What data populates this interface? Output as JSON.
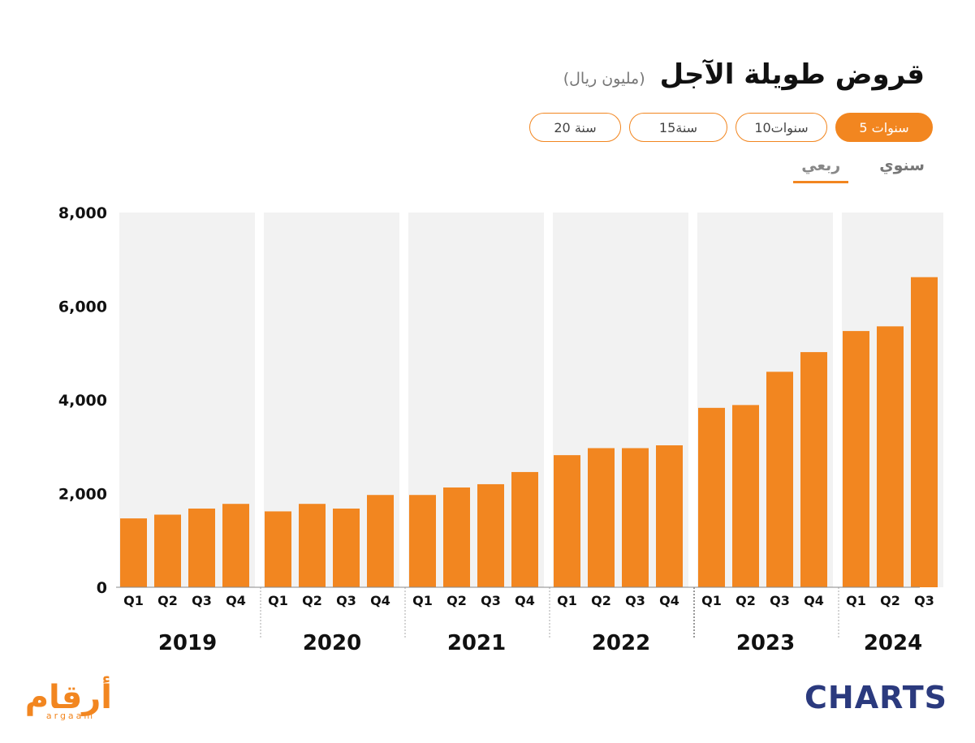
{
  "header": {
    "title": "قروض طويلة الآجل",
    "subtitle": "(مليون ريال)"
  },
  "range_buttons": [
    {
      "label": "5 سنوات",
      "active": true
    },
    {
      "label": "10سنوات",
      "active": false
    },
    {
      "label": "15سنة",
      "active": false
    },
    {
      "label": "20 سنة",
      "active": false
    }
  ],
  "period_tabs": [
    {
      "label": "سنوي",
      "active": false
    },
    {
      "label": "ربعي",
      "active": true
    }
  ],
  "logos": {
    "left_text": "أرقام",
    "left_sub": "argaam",
    "right_text": "CHARTS"
  },
  "colors": {
    "accent": "#f28620",
    "bar": "#f28620",
    "band": "#f2f2f2",
    "brand_dark": "#2b3a7e"
  },
  "chart_data": {
    "type": "bar",
    "ylim": [
      0,
      8000
    ],
    "yticks": [
      0,
      2000,
      4000,
      6000,
      8000
    ],
    "ytick_labels": [
      "0",
      "2,000",
      "4,000",
      "6,000",
      "8,000"
    ],
    "grid": false,
    "groups": [
      {
        "year": "2019",
        "quarters": [
          "Q1",
          "Q2",
          "Q3",
          "Q4"
        ],
        "values": [
          1470,
          1550,
          1680,
          1780
        ]
      },
      {
        "year": "2020",
        "quarters": [
          "Q1",
          "Q2",
          "Q3",
          "Q4"
        ],
        "values": [
          1620,
          1780,
          1680,
          1970
        ]
      },
      {
        "year": "2021",
        "quarters": [
          "Q1",
          "Q2",
          "Q3",
          "Q4"
        ],
        "values": [
          1970,
          2130,
          2200,
          2460
        ]
      },
      {
        "year": "2022",
        "quarters": [
          "Q1",
          "Q2",
          "Q3",
          "Q4"
        ],
        "values": [
          2820,
          2970,
          2970,
          3030
        ]
      },
      {
        "year": "2023",
        "quarters": [
          "Q1",
          "Q2",
          "Q3",
          "Q4"
        ],
        "values": [
          3830,
          3890,
          4600,
          5020
        ]
      },
      {
        "year": "2024",
        "quarters": [
          "Q1",
          "Q2",
          "Q3"
        ],
        "values": [
          5470,
          5570,
          6620
        ]
      }
    ]
  }
}
